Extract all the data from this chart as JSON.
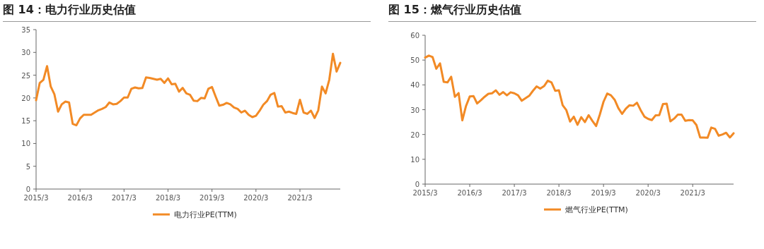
{
  "chart_data": [
    {
      "type": "line",
      "title": "图 14：电力行业历史估值",
      "legend": "bottom",
      "marker": "none",
      "line_style": "solid",
      "x": [
        "2015-03",
        "2015-04",
        "2015-05",
        "2015-06",
        "2015-07",
        "2015-08",
        "2015-09",
        "2015-10",
        "2015-11",
        "2015-12",
        "2016-01",
        "2016-02",
        "2016-03",
        "2016-04",
        "2016-05",
        "2016-06",
        "2016-07",
        "2016-08",
        "2016-09",
        "2016-10",
        "2016-11",
        "2016-12",
        "2017-01",
        "2017-02",
        "2017-03",
        "2017-04",
        "2017-05",
        "2017-06",
        "2017-07",
        "2017-08",
        "2017-09",
        "2017-10",
        "2017-11",
        "2017-12",
        "2018-01",
        "2018-02",
        "2018-03",
        "2018-04",
        "2018-05",
        "2018-06",
        "2018-07",
        "2018-08",
        "2018-09",
        "2018-10",
        "2018-11",
        "2018-12",
        "2019-01",
        "2019-02",
        "2019-03",
        "2019-04",
        "2019-05",
        "2019-06",
        "2019-07",
        "2019-08",
        "2019-09",
        "2019-10",
        "2019-11",
        "2019-12",
        "2020-01",
        "2020-02",
        "2020-03",
        "2020-04",
        "2020-05",
        "2020-06",
        "2020-07",
        "2020-08",
        "2020-09",
        "2020-10",
        "2020-11",
        "2020-12",
        "2021-01",
        "2021-02",
        "2021-03",
        "2021-04",
        "2021-05",
        "2021-06",
        "2021-07",
        "2021-08",
        "2021-09",
        "2021-10",
        "2021-11",
        "2021-12",
        "2022-01",
        "2022-02"
      ],
      "series": [
        {
          "name": "电力行业PE(TTM)",
          "color": "#f28a25",
          "values": [
            19.5,
            23.3,
            24.0,
            27.0,
            22.5,
            20.8,
            17.0,
            18.6,
            19.2,
            19.0,
            14.3,
            14.0,
            15.5,
            16.3,
            16.3,
            16.3,
            16.8,
            17.3,
            17.6,
            18.0,
            19.0,
            18.6,
            18.7,
            19.3,
            20.1,
            20.1,
            22.0,
            22.3,
            22.1,
            22.2,
            24.5,
            24.4,
            24.2,
            24.0,
            24.2,
            23.3,
            24.3,
            23.0,
            23.1,
            21.4,
            22.2,
            21.0,
            20.7,
            19.4,
            19.3,
            20.0,
            19.9,
            22.0,
            22.4,
            20.3,
            18.3,
            18.5,
            18.9,
            18.6,
            17.9,
            17.6,
            16.8,
            17.2,
            16.3,
            15.8,
            16.1,
            17.2,
            18.5,
            19.3,
            20.7,
            21.1,
            18.1,
            18.2,
            16.8,
            17.0,
            16.7,
            16.5,
            19.6,
            16.8,
            16.5,
            17.2,
            15.6,
            17.3,
            22.5,
            21.0,
            24.0,
            29.7,
            25.8,
            27.7
          ]
        }
      ],
      "xlim": [
        "2015-03",
        "2022-02"
      ],
      "ylim": [
        0,
        35
      ],
      "yticks": [
        0,
        5,
        10,
        15,
        20,
        25,
        30,
        35
      ],
      "xticks": [
        {
          "value": "2015-03",
          "label": "2015/3"
        },
        {
          "value": "2016-03",
          "label": "2016/3"
        },
        {
          "value": "2017-03",
          "label": "2017/3"
        },
        {
          "value": "2018-03",
          "label": "2018/3"
        },
        {
          "value": "2019-03",
          "label": "2019/3"
        },
        {
          "value": "2020-03",
          "label": "2020/3"
        },
        {
          "value": "2021-03",
          "label": "2021/3"
        }
      ]
    },
    {
      "type": "line",
      "title": "图 15：燃气行业历史估值",
      "legend": "bottom",
      "marker": "none",
      "line_style": "solid",
      "x": [
        "2015-03",
        "2015-04",
        "2015-05",
        "2015-06",
        "2015-07",
        "2015-08",
        "2015-09",
        "2015-10",
        "2015-11",
        "2015-12",
        "2016-01",
        "2016-02",
        "2016-03",
        "2016-04",
        "2016-05",
        "2016-06",
        "2016-07",
        "2016-08",
        "2016-09",
        "2016-10",
        "2016-11",
        "2016-12",
        "2017-01",
        "2017-02",
        "2017-03",
        "2017-04",
        "2017-05",
        "2017-06",
        "2017-07",
        "2017-08",
        "2017-09",
        "2017-10",
        "2017-11",
        "2017-12",
        "2018-01",
        "2018-02",
        "2018-03",
        "2018-04",
        "2018-05",
        "2018-06",
        "2018-07",
        "2018-08",
        "2018-09",
        "2018-10",
        "2018-11",
        "2018-12",
        "2019-01",
        "2019-02",
        "2019-03",
        "2019-04",
        "2019-05",
        "2019-06",
        "2019-07",
        "2019-08",
        "2019-09",
        "2019-10",
        "2019-11",
        "2019-12",
        "2020-01",
        "2020-02",
        "2020-03",
        "2020-04",
        "2020-05",
        "2020-06",
        "2020-07",
        "2020-08",
        "2020-09",
        "2020-10",
        "2020-11",
        "2020-12",
        "2021-01",
        "2021-02",
        "2021-03",
        "2021-04",
        "2021-05",
        "2021-06",
        "2021-07",
        "2021-08",
        "2021-09",
        "2021-10",
        "2021-11",
        "2021-12",
        "2022-01",
        "2022-02"
      ],
      "series": [
        {
          "name": "燃气行业PE(TTM)",
          "color": "#f28a25",
          "values": [
            51.0,
            51.8,
            51.2,
            46.5,
            48.7,
            41.2,
            41.0,
            43.3,
            35.2,
            36.7,
            25.7,
            31.5,
            35.3,
            35.5,
            32.5,
            33.8,
            35.2,
            36.4,
            36.6,
            37.8,
            36.0,
            37.1,
            35.8,
            37.0,
            36.6,
            35.8,
            33.6,
            34.6,
            35.6,
            37.6,
            39.4,
            38.5,
            39.5,
            41.7,
            41.0,
            37.6,
            37.8,
            31.8,
            29.8,
            25.2,
            27.2,
            23.9,
            27.0,
            25.0,
            27.8,
            25.5,
            23.4,
            28.0,
            33.2,
            36.5,
            35.8,
            34.0,
            30.6,
            28.3,
            30.4,
            31.8,
            31.6,
            32.8,
            29.8,
            27.2,
            26.3,
            25.8,
            27.7,
            27.8,
            32.3,
            32.4,
            25.3,
            26.4,
            28.0,
            28.0,
            25.5,
            25.8,
            25.7,
            23.8,
            18.8,
            18.8,
            18.7,
            22.8,
            22.3,
            19.5,
            20.0,
            20.7,
            18.8,
            20.5
          ]
        }
      ],
      "xlim": [
        "2015-03",
        "2022-02"
      ],
      "ylim": [
        0,
        60
      ],
      "yticks": [
        0,
        10,
        20,
        30,
        40,
        50,
        60
      ],
      "xticks": [
        {
          "value": "2015-03",
          "label": "2015/3"
        },
        {
          "value": "2016-03",
          "label": "2016/3"
        },
        {
          "value": "2017-03",
          "label": "2017/3"
        },
        {
          "value": "2018-03",
          "label": "2018/3"
        },
        {
          "value": "2019-03",
          "label": "2019/3"
        },
        {
          "value": "2020-03",
          "label": "2020/3"
        },
        {
          "value": "2021-03",
          "label": "2021/3"
        }
      ]
    }
  ]
}
